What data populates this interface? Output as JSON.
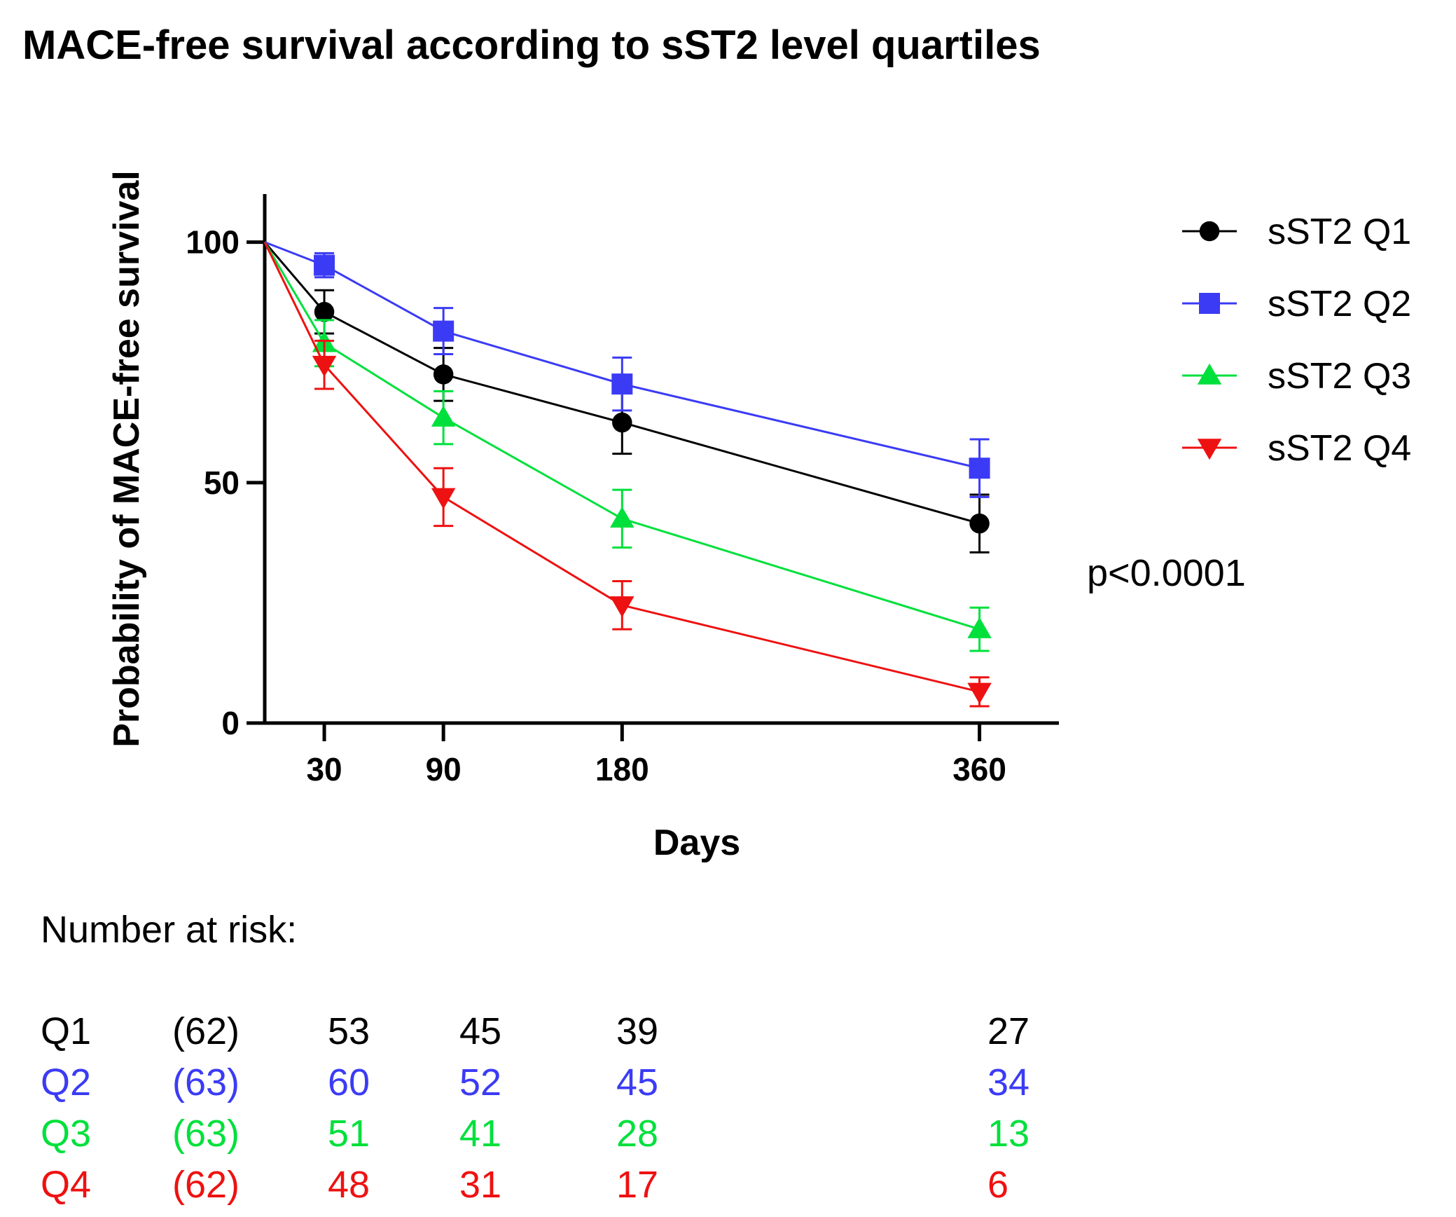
{
  "chart_data": {
    "type": "line",
    "title": "MACE-free survival according to sST2 level quartiles",
    "xlabel": "Days",
    "ylabel": "Probability of MACE-free survival",
    "x_ticks": [
      30,
      90,
      180,
      360
    ],
    "y_ticks": [
      0,
      50,
      100
    ],
    "xlim": [
      0,
      400
    ],
    "ylim": [
      0,
      110
    ],
    "legend_position": "top-right",
    "annotation": "p<0.0001",
    "series": [
      {
        "name": "sST2 Q1",
        "color": "#000000",
        "marker": "circle",
        "x": [
          0,
          30,
          90,
          180,
          360
        ],
        "y": [
          100,
          85.5,
          72.5,
          62.5,
          41.5
        ],
        "err": [
          0,
          4.5,
          5.5,
          6.5,
          6.0
        ]
      },
      {
        "name": "sST2 Q2",
        "color": "#3b3bf5",
        "marker": "square",
        "x": [
          0,
          30,
          90,
          180,
          360
        ],
        "y": [
          100,
          95.2,
          81.5,
          70.5,
          53
        ],
        "err": [
          0,
          2.5,
          4.8,
          5.5,
          6.0
        ]
      },
      {
        "name": "sST2 Q3",
        "color": "#00e03c",
        "marker": "triangle-up",
        "x": [
          0,
          30,
          90,
          180,
          360
        ],
        "y": [
          100,
          79,
          63.5,
          42.5,
          19.5
        ],
        "err": [
          0,
          4.8,
          5.5,
          6.0,
          4.5
        ]
      },
      {
        "name": "sST2 Q4",
        "color": "#ee1111",
        "marker": "triangle-down",
        "x": [
          0,
          30,
          90,
          180,
          360
        ],
        "y": [
          100,
          74.5,
          47,
          24.5,
          6.5
        ],
        "err": [
          0,
          5.0,
          6.0,
          5.0,
          3.0
        ]
      }
    ]
  },
  "risk_table": {
    "label": "Number at risk:",
    "rows": [
      {
        "label": "Q1",
        "initial": "(62)",
        "values": [
          "53",
          "45",
          "39",
          "27"
        ],
        "color": "#000000"
      },
      {
        "label": "Q2",
        "initial": "(63)",
        "values": [
          "60",
          "52",
          "45",
          "34"
        ],
        "color": "#3b3bf5"
      },
      {
        "label": "Q3",
        "initial": "(63)",
        "values": [
          "51",
          "41",
          "28",
          "13"
        ],
        "color": "#00e03c"
      },
      {
        "label": "Q4",
        "initial": "(62)",
        "values": [
          "48",
          "31",
          "17",
          "6"
        ],
        "color": "#ee1111"
      }
    ]
  }
}
